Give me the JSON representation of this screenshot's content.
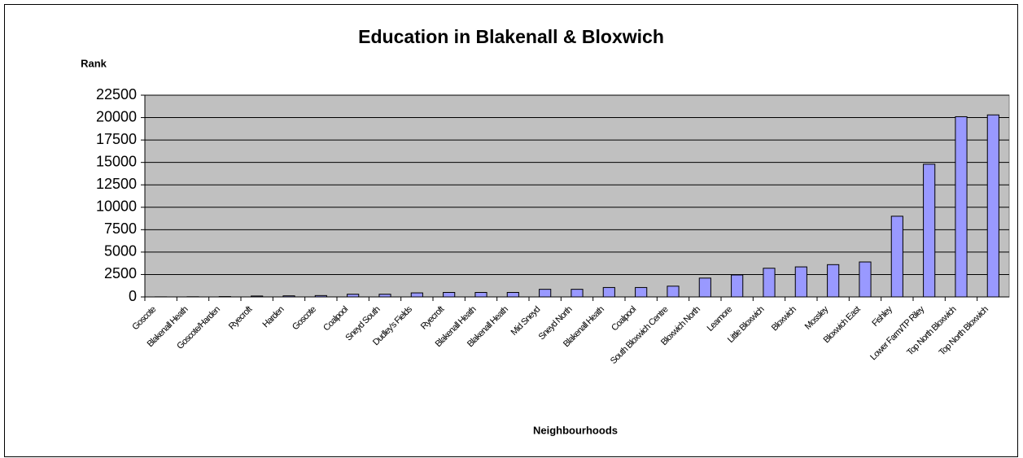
{
  "chart_data": {
    "type": "bar",
    "title": "Education in Blakenall & Bloxwich",
    "y_label": "Rank",
    "x_label": "Neighbourhoods",
    "categories": [
      "Goscote",
      "Blakenall Heath",
      "Goscote/Harden",
      "Ryecroft",
      "Harden",
      "Goscote",
      "Coalpool",
      "Sneyd South",
      "Dudley's Fields",
      "Ryecroft",
      "Blakenall Heath",
      "Blakenall Heath",
      "Mid Sneyd",
      "Sneyd North",
      "Blakenall Heath",
      "Coalpool",
      "South Bloxwich Centre",
      "Bloxwich North",
      "Leamore",
      "Little Bloxwich",
      "Bloxwich",
      "Mossley",
      "Bloxwich East",
      "Fishley",
      "Lower Farm/TP Riley",
      "Top North Bloxwich",
      "Top North Bloxwich"
    ],
    "values": [
      10,
      20,
      40,
      100,
      120,
      150,
      300,
      300,
      450,
      500,
      500,
      500,
      850,
      850,
      1050,
      1050,
      1200,
      2100,
      2450,
      3200,
      3350,
      3600,
      3900,
      9000,
      14800,
      20100,
      20300
    ],
    "color": "#9999ff",
    "ylim": [
      0,
      22500
    ],
    "yticks": [
      0,
      2500,
      5000,
      7500,
      10000,
      12500,
      15000,
      17500,
      20000,
      22500
    ],
    "grid": true
  }
}
